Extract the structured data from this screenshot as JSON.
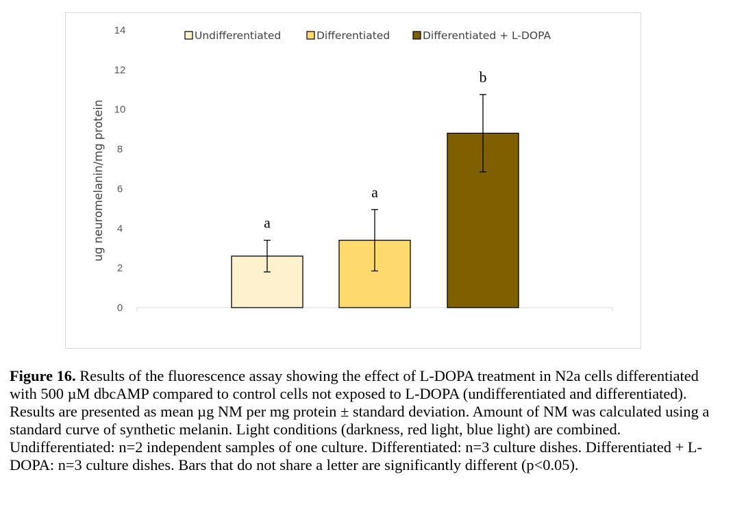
{
  "chart_data": {
    "type": "bar",
    "categories": [
      "Undifferentiated",
      "Differentiated",
      "Differentiated + L-DOPA"
    ],
    "values": [
      2.6,
      3.4,
      8.8
    ],
    "error": [
      0.8,
      1.55,
      1.95
    ],
    "significance_letters": [
      "a",
      "a",
      "b"
    ],
    "colors": [
      "#fdf1ce",
      "#fed96e",
      "#7f5f00"
    ],
    "ylabel": "ug neuromelanin/mg protein",
    "ylim": [
      0,
      14
    ],
    "yticks": [
      0,
      2,
      4,
      6,
      8,
      10,
      12,
      14
    ],
    "legend_position": "top",
    "grid": false
  },
  "caption": {
    "label": "Figure 16.",
    "text": " Results of the fluorescence assay showing the effect of L-DOPA treatment in N2a cells differentiated with 500 µM dbcAMP compared to control cells not exposed to L-DOPA (undifferentiated and differentiated). Results are presented as mean µg NM per mg protein ± standard deviation. Amount of NM was calculated using a standard curve of synthetic melanin. Light conditions (darkness, red light, blue light) are combined. Undifferentiated: n=2 independent samples of one culture. Differentiated: n=3 culture dishes. Differentiated + L-DOPA: n=3 culture dishes. Bars that do not share a letter are significantly different (p<0.05)."
  }
}
